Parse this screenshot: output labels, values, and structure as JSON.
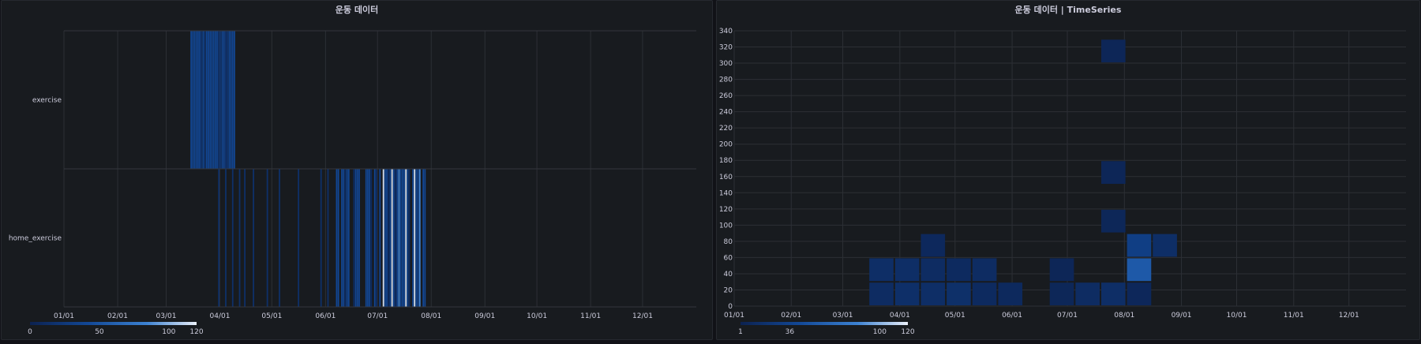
{
  "left_panel": {
    "title": "운동 데이터",
    "chart_data": {
      "type": "heatmap",
      "rows": [
        "exercise",
        "home_exercise"
      ],
      "x_ticks": [
        "01/01",
        "02/01",
        "03/01",
        "04/01",
        "05/01",
        "06/01",
        "07/01",
        "08/01",
        "09/01",
        "10/01",
        "11/01",
        "12/01"
      ],
      "x_range_months": [
        0,
        12
      ],
      "color_scale": {
        "min": 0,
        "max": 120,
        "ticks": [
          0,
          50,
          100,
          120
        ]
      },
      "grid": true,
      "cells": [
        {
          "row": "exercise",
          "days": [
            73,
            74,
            75,
            76,
            77,
            78,
            80,
            82,
            83,
            84,
            85,
            86,
            87,
            88,
            91,
            92,
            95,
            96,
            97,
            98
          ],
          "value": 40
        },
        {
          "row": "exercise",
          "days": [
            79,
            81,
            89,
            90,
            93,
            94
          ],
          "value": 20
        },
        {
          "row": "home_exercise",
          "days": [
            89,
            93,
            97,
            101,
            104,
            109,
            117,
            124,
            135,
            148,
            152
          ],
          "value": 15
        },
        {
          "row": "home_exercise",
          "days": [
            157,
            158,
            160,
            161,
            163,
            164,
            168,
            169,
            170,
            174,
            175,
            176,
            179,
            182,
            185,
            186,
            188,
            190,
            192,
            194,
            195,
            196,
            198,
            201,
            203,
            204,
            207,
            208
          ],
          "value": 40
        },
        {
          "row": "home_exercise",
          "days": [
            162,
            167,
            177,
            180,
            187,
            191,
            199
          ],
          "value": 10
        },
        {
          "row": "home_exercise",
          "days": [
            184,
            189,
            197,
            202
          ],
          "value": 115
        },
        {
          "row": "home_exercise",
          "days": [
            193,
            205
          ],
          "value": 85
        }
      ]
    },
    "legend": {
      "labels": [
        "0",
        "50",
        "100",
        "120"
      ]
    }
  },
  "right_panel": {
    "title": "운동 데이터 | TimeSeries",
    "chart_data": {
      "type": "heatmap",
      "x_ticks": [
        "01/01",
        "02/01",
        "03/01",
        "04/01",
        "05/01",
        "06/01",
        "07/01",
        "08/01",
        "09/01",
        "10/01",
        "11/01",
        "12/01"
      ],
      "y_ticks": [
        0,
        20,
        40,
        60,
        80,
        100,
        120,
        140,
        160,
        180,
        200,
        220,
        240,
        260,
        280,
        300,
        320,
        340
      ],
      "ylim": [
        0,
        340
      ],
      "y_bucket_size": 30,
      "x_bucket_days": 14,
      "color_scale": {
        "min": 1,
        "max": 120,
        "ticks": [
          1,
          36,
          100,
          120
        ]
      },
      "grid": true,
      "buckets": [
        {
          "start_day": 73,
          "y": 0,
          "count": 12
        },
        {
          "start_day": 73,
          "y": 30,
          "count": 14
        },
        {
          "start_day": 87,
          "y": 0,
          "count": 15
        },
        {
          "start_day": 87,
          "y": 30,
          "count": 14
        },
        {
          "start_day": 101,
          "y": 0,
          "count": 14
        },
        {
          "start_day": 101,
          "y": 30,
          "count": 12
        },
        {
          "start_day": 101,
          "y": 60,
          "count": 8
        },
        {
          "start_day": 115,
          "y": 0,
          "count": 16
        },
        {
          "start_day": 115,
          "y": 30,
          "count": 10
        },
        {
          "start_day": 129,
          "y": 0,
          "count": 10
        },
        {
          "start_day": 129,
          "y": 30,
          "count": 12
        },
        {
          "start_day": 143,
          "y": 0,
          "count": 9
        },
        {
          "start_day": 171,
          "y": 0,
          "count": 6
        },
        {
          "start_day": 171,
          "y": 30,
          "count": 5
        },
        {
          "start_day": 185,
          "y": 0,
          "count": 12
        },
        {
          "start_day": 199,
          "y": 0,
          "count": 14
        },
        {
          "start_day": 199,
          "y": 90,
          "count": 6
        },
        {
          "start_day": 199,
          "y": 150,
          "count": 5
        },
        {
          "start_day": 199,
          "y": 300,
          "count": 5
        },
        {
          "start_day": 213,
          "y": 0,
          "count": 7
        },
        {
          "start_day": 213,
          "y": 30,
          "count": 55
        },
        {
          "start_day": 213,
          "y": 60,
          "count": 32
        },
        {
          "start_day": 227,
          "y": 60,
          "count": 14
        }
      ]
    },
    "legend": {
      "labels": [
        "1",
        "36",
        "100",
        "120"
      ]
    }
  }
}
